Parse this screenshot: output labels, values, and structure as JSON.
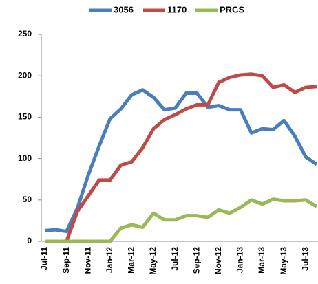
{
  "chart_data": {
    "type": "line",
    "categories": [
      "Jul-11",
      null,
      "Sep-11",
      null,
      "Nov-11",
      null,
      "Jan-12",
      null,
      "Mar-12",
      null,
      "May-12",
      null,
      "Jul-12",
      null,
      "Sep-12",
      null,
      "Nov-12",
      null,
      "Jan-13",
      null,
      "Mar-13",
      null,
      "May-13",
      null,
      "Jul-13",
      null
    ],
    "series": [
      {
        "name": "3056",
        "color": "#4a7ebb",
        "values": [
          13,
          14,
          12,
          40,
          80,
          115,
          148,
          160,
          177,
          183,
          174,
          159,
          161,
          179,
          179,
          162,
          164,
          159,
          159,
          131,
          136,
          135,
          146,
          127,
          102,
          93
        ]
      },
      {
        "name": "1170",
        "color": "#be4b48",
        "values": [
          0,
          0,
          0,
          36,
          55,
          74,
          74,
          92,
          96,
          113,
          136,
          147,
          153,
          160,
          165,
          165,
          192,
          198,
          201,
          202,
          200,
          186,
          189,
          180,
          186,
          187
        ]
      },
      {
        "name": "PRCS",
        "color": "#98b954",
        "values": [
          0,
          0,
          0,
          0,
          0,
          0,
          0,
          16,
          20,
          17,
          34,
          26,
          26,
          31,
          31,
          29,
          38,
          34,
          41,
          50,
          45,
          51,
          49,
          49,
          50,
          42
        ]
      }
    ],
    "ylim": [
      0,
      250
    ],
    "yticks": [
      0,
      50,
      100,
      150,
      200,
      250
    ],
    "grid": false,
    "legend": "top"
  }
}
